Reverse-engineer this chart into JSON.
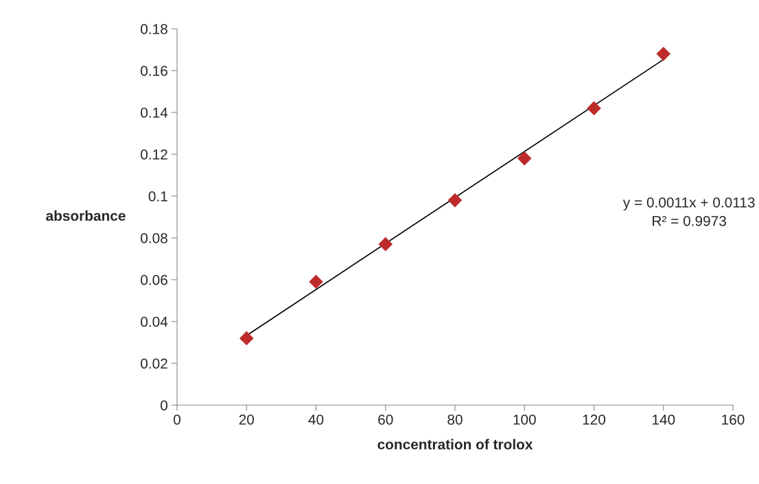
{
  "chart_data": {
    "type": "scatter",
    "xlabel": "concentration of trolox",
    "ylabel": "absorbance",
    "series": [
      {
        "color": "#be2b2b",
        "marker": "diamond",
        "x": [
          20,
          40,
          60,
          80,
          100,
          120,
          140
        ],
        "values": [
          0.032,
          0.059,
          0.077,
          0.098,
          0.118,
          0.142,
          0.168
        ]
      },
      {
        "type": "line",
        "color": "#000000",
        "x": [
          20,
          140
        ],
        "values": [
          0.0333,
          0.1653
        ]
      }
    ],
    "annotations": [
      "y = 0.0011x + 0.0113\nR² = 0.9973"
    ],
    "xlim": [
      0,
      160
    ],
    "xticks": [
      0,
      20,
      40,
      60,
      80,
      100,
      120,
      140,
      160
    ],
    "ylim": [
      0,
      0.18
    ],
    "yticks": [
      0,
      0.02,
      0.04,
      0.06,
      0.08,
      0.1,
      0.12,
      0.14,
      0.16,
      0.18
    ],
    "grid": false,
    "legend": false
  }
}
